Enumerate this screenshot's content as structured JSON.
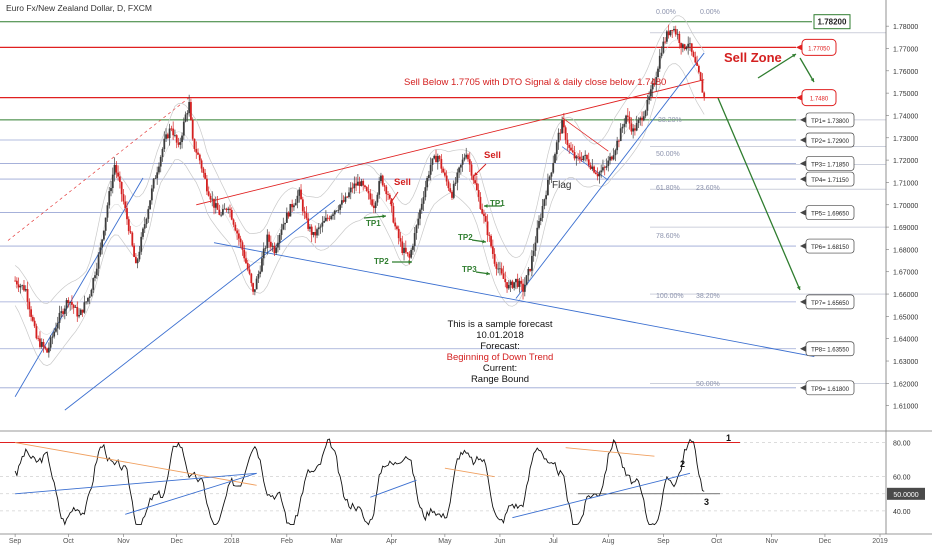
{
  "title": "Euro Fx/New Zealand Dollar, D, FXCM",
  "colors": {
    "up": "#3c3c3c",
    "down": "#d42020",
    "level_red": "#e02020",
    "level_green": "#2f7d2f",
    "tp_line": "#9aa6d4",
    "trend_blue": "#3b6fd0",
    "fib": "#9aa0b8",
    "band": "#c9c9c9",
    "text_red": "#d42020",
    "text_green": "#2f7d2f",
    "osc": "#111111",
    "osc_orange": "#f0a060"
  },
  "chart_data": [
    {
      "type": "candlestick",
      "title": "Euro Fx/New Zealand Dollar, D, FXCM",
      "ylim": [
        1.6,
        1.785
      ],
      "y_ticks": [
        "1.78000",
        "1.77000",
        "1.76000",
        "1.75000",
        "1.74000",
        "1.73000",
        "1.72000",
        "1.71000",
        "1.70000",
        "1.69000",
        "1.68000",
        "1.67000",
        "1.66000",
        "1.65000",
        "1.64000",
        "1.63000",
        "1.62000",
        "1.61000"
      ],
      "x_labels": [
        "Sep",
        "Oct",
        "Nov",
        "Dec",
        "2018",
        "Feb",
        "Mar",
        "Apr",
        "May",
        "Jun",
        "Jul",
        "Aug",
        "Sep",
        "Oct",
        "Nov",
        "Dec",
        "2019"
      ],
      "x_label_days": [
        0,
        30,
        61,
        91,
        122,
        153,
        181,
        212,
        242,
        273,
        303,
        334,
        365,
        395,
        426,
        456,
        487
      ],
      "close_points": [
        [
          0,
          1.666
        ],
        [
          6,
          1.662
        ],
        [
          12,
          1.64
        ],
        [
          18,
          1.634
        ],
        [
          24,
          1.648
        ],
        [
          30,
          1.658
        ],
        [
          36,
          1.65
        ],
        [
          42,
          1.66
        ],
        [
          48,
          1.68
        ],
        [
          52,
          1.7
        ],
        [
          56,
          1.718
        ],
        [
          60,
          1.705
        ],
        [
          64,
          1.69
        ],
        [
          68,
          1.672
        ],
        [
          72,
          1.688
        ],
        [
          78,
          1.71
        ],
        [
          84,
          1.728
        ],
        [
          88,
          1.735
        ],
        [
          92,
          1.725
        ],
        [
          96,
          1.74
        ],
        [
          98,
          1.745
        ],
        [
          100,
          1.728
        ],
        [
          104,
          1.72
        ],
        [
          108,
          1.708
        ],
        [
          112,
          1.7
        ],
        [
          116,
          1.695
        ],
        [
          120,
          1.7
        ],
        [
          124,
          1.69
        ],
        [
          128,
          1.68
        ],
        [
          132,
          1.668
        ],
        [
          134,
          1.66
        ],
        [
          138,
          1.672
        ],
        [
          142,
          1.685
        ],
        [
          146,
          1.68
        ],
        [
          150,
          1.69
        ],
        [
          156,
          1.7
        ],
        [
          160,
          1.705
        ],
        [
          164,
          1.692
        ],
        [
          168,
          1.686
        ],
        [
          174,
          1.692
        ],
        [
          180,
          1.698
        ],
        [
          186,
          1.702
        ],
        [
          190,
          1.708
        ],
        [
          194,
          1.71
        ],
        [
          198,
          1.705
        ],
        [
          202,
          1.7
        ],
        [
          206,
          1.712
        ],
        [
          210,
          1.705
        ],
        [
          214,
          1.69
        ],
        [
          218,
          1.68
        ],
        [
          222,
          1.676
        ],
        [
          226,
          1.69
        ],
        [
          230,
          1.705
        ],
        [
          234,
          1.718
        ],
        [
          238,
          1.722
        ],
        [
          242,
          1.712
        ],
        [
          246,
          1.705
        ],
        [
          250,
          1.715
        ],
        [
          254,
          1.724
        ],
        [
          258,
          1.712
        ],
        [
          262,
          1.7
        ],
        [
          266,
          1.688
        ],
        [
          270,
          1.675
        ],
        [
          274,
          1.668
        ],
        [
          278,
          1.663
        ],
        [
          282,
          1.666
        ],
        [
          286,
          1.662
        ],
        [
          290,
          1.672
        ],
        [
          294,
          1.688
        ],
        [
          298,
          1.703
        ],
        [
          302,
          1.716
        ],
        [
          306,
          1.731
        ],
        [
          308,
          1.736
        ],
        [
          312,
          1.725
        ],
        [
          316,
          1.72
        ],
        [
          320,
          1.722
        ],
        [
          324,
          1.718
        ],
        [
          328,
          1.714
        ],
        [
          332,
          1.716
        ],
        [
          336,
          1.722
        ],
        [
          340,
          1.73
        ],
        [
          344,
          1.74
        ],
        [
          348,
          1.733
        ],
        [
          352,
          1.738
        ],
        [
          356,
          1.745
        ],
        [
          360,
          1.755
        ],
        [
          364,
          1.77
        ],
        [
          367,
          1.776
        ],
        [
          370,
          1.78
        ],
        [
          373,
          1.776
        ],
        [
          376,
          1.77
        ],
        [
          379,
          1.773
        ],
        [
          382,
          1.765
        ],
        [
          385,
          1.758
        ],
        [
          388,
          1.748
        ]
      ],
      "levels": [
        {
          "label": "1.78200",
          "value": 1.782,
          "style": "green-box"
        },
        {
          "label": "1.77050",
          "value": 1.7705,
          "style": "red-callout"
        },
        {
          "label": "1.7480",
          "value": 1.748,
          "style": "red-callout"
        },
        {
          "label": "TP1= 1.73800",
          "value": 1.738
        },
        {
          "label": "TP2= 1.72900",
          "value": 1.729
        },
        {
          "label": "TP3= 1.71850",
          "value": 1.7185
        },
        {
          "label": "TP4= 1.71150",
          "value": 1.7115
        },
        {
          "label": "TP5= 1.69650",
          "value": 1.6965
        },
        {
          "label": "TP6= 1.68150",
          "value": 1.6815
        },
        {
          "label": "TP7= 1.65650",
          "value": 1.6565
        },
        {
          "label": "TP8= 1.63550",
          "value": 1.6355
        },
        {
          "label": "TP9= 1.61800",
          "value": 1.618
        }
      ],
      "fib_labels": [
        "0.00%",
        "0.00%",
        "38.20%",
        "50.00%",
        "61.80%",
        "23.60%",
        "78.60%",
        "100.00%",
        "38.20%",
        "50.00%"
      ],
      "annotations": {
        "sell_zone": "Sell Zone",
        "sell_below": "Sell Below 1.7705 with DTO Signal & daily close below 1.7480",
        "sell": "Sell",
        "flag": "Flag",
        "tp1": "TP1",
        "tp2": "TP2",
        "tp3": "TP3",
        "forecast_lines": [
          "This is a sample forecast",
          "10.01.2018",
          "Forecast:",
          "Beginning of Down Trend",
          "Current:",
          "Range Bound"
        ]
      }
    },
    {
      "type": "line",
      "title": "",
      "ylim": [
        30,
        85
      ],
      "y_ticks": [
        "80.00",
        "60.00",
        "50.0000",
        "40.00"
      ],
      "current_value": "50.0000",
      "markers": [
        "1",
        "2",
        "3"
      ],
      "x_labels": [
        "Sep",
        "Oct",
        "Nov",
        "Dec",
        "2018",
        "Feb",
        "Mar",
        "Apr",
        "May",
        "Jun",
        "Jul",
        "Aug",
        "Sep",
        "Oct",
        "Nov",
        "Dec",
        "2019"
      ]
    }
  ]
}
